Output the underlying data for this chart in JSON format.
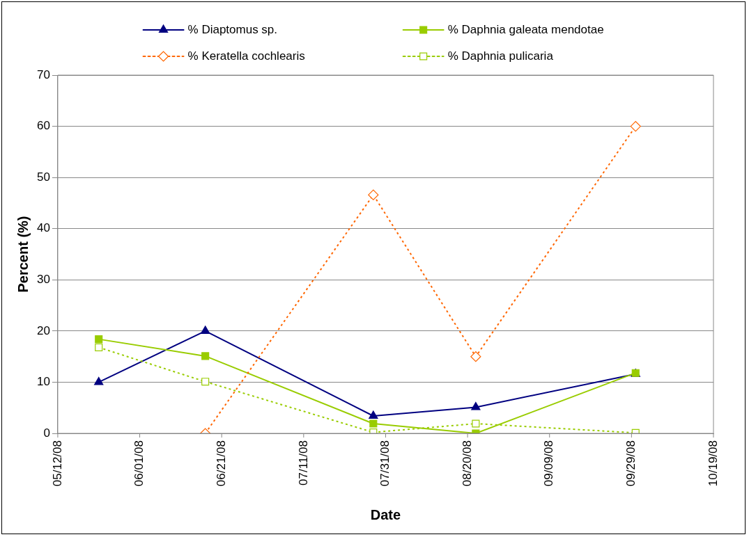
{
  "chart_data": {
    "type": "line",
    "xlabel": "Date",
    "ylabel": "Percent (%)",
    "xlim": [
      "2008-05-12",
      "2008-10-19"
    ],
    "xticks": [
      {
        "value": "2008-05-12",
        "label": "05/12/08"
      },
      {
        "value": "2008-06-01",
        "label": "06/01/08"
      },
      {
        "value": "2008-06-21",
        "label": "06/21/08"
      },
      {
        "value": "2008-07-11",
        "label": "07/11/08"
      },
      {
        "value": "2008-07-31",
        "label": "07/31/08"
      },
      {
        "value": "2008-08-20",
        "label": "08/20/08"
      },
      {
        "value": "2008-09-09",
        "label": "09/09/08"
      },
      {
        "value": "2008-09-29",
        "label": "09/29/08"
      },
      {
        "value": "2008-10-19",
        "label": "10/19/08"
      }
    ],
    "ylim": [
      0,
      70
    ],
    "yticks": [
      0,
      10,
      20,
      30,
      40,
      50,
      60,
      70
    ],
    "grid": "y",
    "legend": "top",
    "series": [
      {
        "name": "% Diaptomus sp.",
        "color": "#000080",
        "marker": "triangle",
        "line_style": "solid",
        "x": [
          "2008-05-22",
          "2008-06-17",
          "2008-07-28",
          "2008-08-22",
          "2008-09-30"
        ],
        "values": [
          10,
          20,
          3.4,
          5.1,
          11.6
        ]
      },
      {
        "name": "% Daphnia galeata mendotae",
        "color": "#99cc00",
        "marker": "square",
        "line_style": "solid",
        "x": [
          "2008-05-22",
          "2008-06-17",
          "2008-07-28",
          "2008-08-22",
          "2008-09-30"
        ],
        "values": [
          18.4,
          15.1,
          1.9,
          0,
          11.8
        ]
      },
      {
        "name": "% Keratella cochlearis",
        "color": "#ff6600",
        "marker": "diamond",
        "line_style": "dotted",
        "x": [
          "2008-06-17",
          "2008-07-28",
          "2008-08-22",
          "2008-09-30"
        ],
        "values": [
          0,
          46.6,
          15,
          60
        ]
      },
      {
        "name": "% Daphnia pulicaria",
        "color": "#99cc00",
        "marker": "square",
        "line_style": "dotted",
        "x": [
          "2008-05-22",
          "2008-06-17",
          "2008-07-28",
          "2008-08-22",
          "2008-09-30"
        ],
        "values": [
          16.8,
          10.1,
          0.2,
          1.9,
          0.1
        ]
      }
    ]
  }
}
